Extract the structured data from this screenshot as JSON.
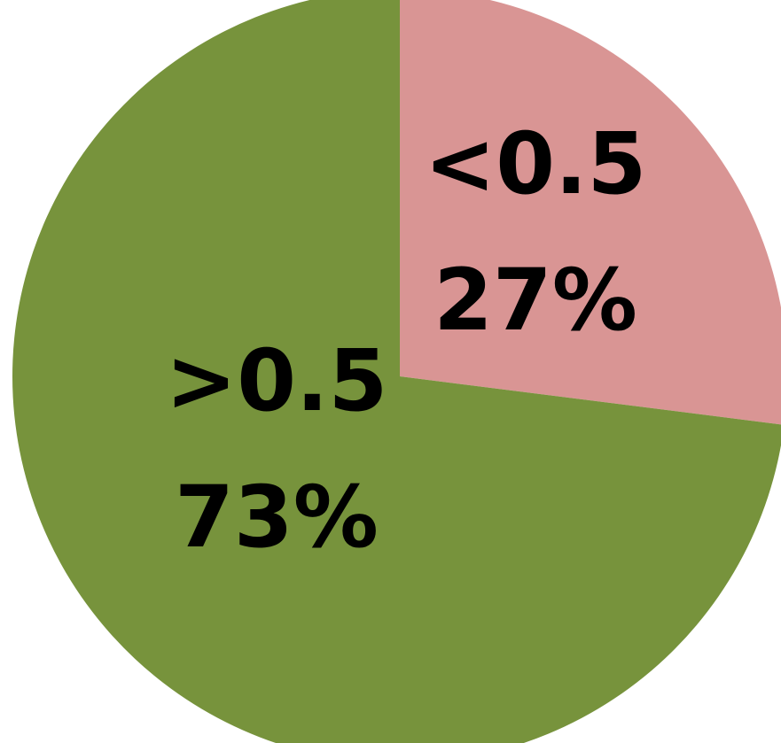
{
  "chart_data": {
    "type": "pie",
    "slices": [
      {
        "category": "<0.5",
        "percent_label": "27%",
        "value": 27,
        "color": "#d99594"
      },
      {
        "category": ">0.5",
        "percent_label": "73%",
        "value": 73,
        "color": "#77933c"
      }
    ],
    "start_angle_deg": 0,
    "direction": "clockwise",
    "legend": "none"
  }
}
